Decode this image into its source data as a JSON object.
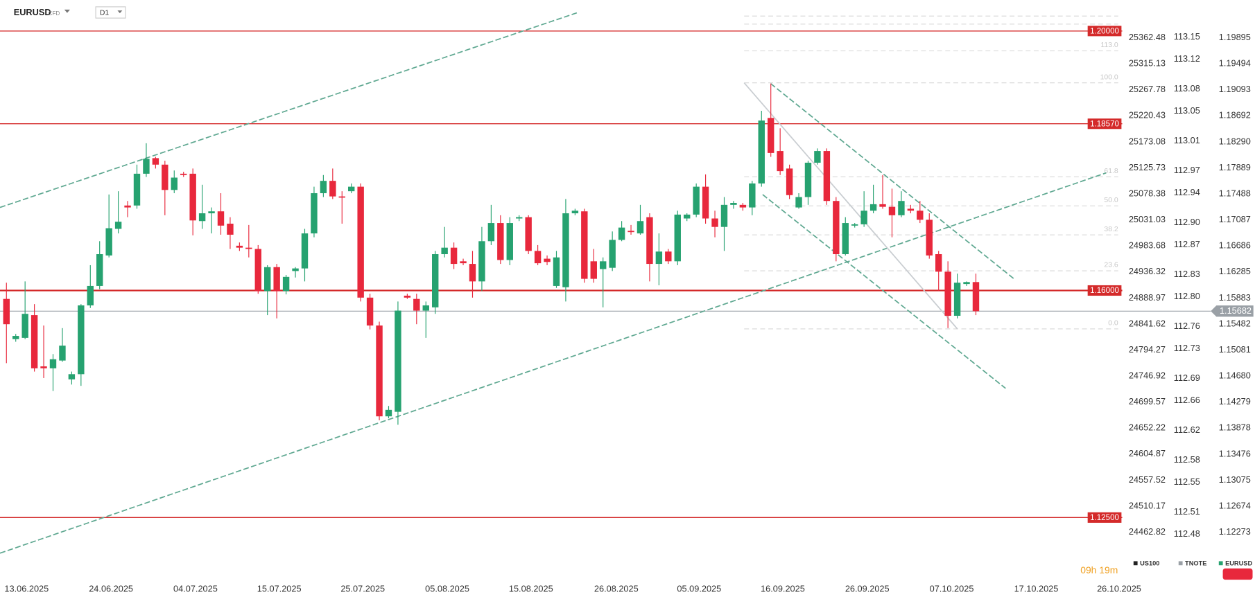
{
  "chart_data": {
    "type": "candlestick",
    "symbol": "EURUSD",
    "badge": "CFD",
    "timeframe": "D1",
    "countdown": "09h 19m",
    "up_color": "#26a270",
    "down_color": "#e8283c",
    "categories": [
      null,
      null,
      null,
      null,
      null,
      null,
      null,
      null,
      null,
      null,
      null,
      null,
      null,
      null,
      null,
      null,
      null,
      null,
      null,
      null,
      null,
      null,
      null,
      null,
      null,
      null,
      null,
      null,
      null,
      null,
      null,
      null,
      null,
      null,
      null,
      null,
      null,
      null,
      null,
      null,
      null,
      null,
      null,
      null,
      null,
      null,
      null,
      null,
      null,
      null,
      null,
      null,
      null,
      null,
      null,
      null,
      null,
      null,
      null,
      null,
      null,
      null,
      null,
      null,
      null,
      null,
      null,
      null,
      null,
      null,
      null,
      null,
      null,
      null,
      null,
      null,
      null,
      null,
      null,
      null,
      null,
      null,
      null,
      null,
      null,
      null,
      null,
      null,
      null,
      null,
      null,
      null,
      null,
      null,
      null,
      null,
      null,
      null,
      null,
      null,
      null,
      null,
      null,
      null,
      null
    ],
    "open": [
      1.1587,
      1.1525,
      1.1527,
      1.1562,
      1.1483,
      1.148,
      1.1492,
      1.1463,
      1.1471,
      1.1577,
      1.1607,
      1.1654,
      1.1695,
      1.1731,
      1.1731,
      1.178,
      1.1804,
      1.1794,
      1.1755,
      1.178,
      1.178,
      1.1707,
      1.1719,
      1.1722,
      1.1703,
      1.1669,
      1.1666,
      1.1664,
      1.1599,
      1.1636,
      1.1599,
      1.163,
      1.1634,
      1.1688,
      1.175,
      1.1769,
      1.1745,
      1.1753,
      1.176,
      1.1589,
      1.1546,
      1.1406,
      1.1413,
      1.1592,
      1.1587,
      1.1569,
      1.1574,
      1.1656,
      1.1666,
      1.1645,
      1.1641,
      1.1614,
      1.1676,
      1.1704,
      1.1647,
      1.1711,
      1.1713,
      1.1661,
      1.1649,
      1.1607,
      1.1605,
      1.1719,
      1.1722,
      1.1645,
      1.1633,
      1.1635,
      1.1678,
      1.1692,
      1.1688,
      1.1713,
      1.1641,
      1.166,
      1.1645,
      1.1711,
      1.1717,
      1.176,
      1.1711,
      1.1698,
      1.1732,
      1.1732,
      1.1728,
      1.1765,
      1.1866,
      1.1815,
      1.1788,
      1.1728,
      1.1744,
      1.1797,
      1.1815,
      1.1738,
      1.1656,
      1.17,
      1.1702,
      1.1723,
      1.1733,
      1.1729,
      1.1716,
      1.1726,
      1.1723,
      1.1709,
      1.1656,
      1.1629,
      1.1561,
      1.161,
      1.1613
    ],
    "high": [
      1.1612,
      1.1533,
      1.1614,
      1.1579,
      1.1546,
      1.1502,
      1.1542,
      1.1475,
      1.1579,
      1.1639,
      1.1676,
      1.1748,
      1.1753,
      1.1738,
      1.1794,
      1.1827,
      1.1806,
      1.18,
      1.1785,
      1.1783,
      1.1788,
      1.1763,
      1.1728,
      1.175,
      1.1713,
      1.1674,
      1.1701,
      1.167,
      1.1639,
      1.1641,
      1.1624,
      1.1636,
      1.1695,
      1.176,
      1.1778,
      1.1788,
      1.1753,
      1.1765,
      1.1765,
      1.1595,
      1.1552,
      1.1422,
      1.1583,
      1.1595,
      1.1595,
      1.1583,
      1.1661,
      1.1698,
      1.1674,
      1.1649,
      1.1661,
      1.1698,
      1.1732,
      1.1716,
      1.1713,
      1.1716,
      1.1716,
      1.167,
      1.1654,
      1.1661,
      1.1741,
      1.1726,
      1.1726,
      1.1664,
      1.1651,
      1.1691,
      1.1707,
      1.1701,
      1.1732,
      1.1719,
      1.1688,
      1.1664,
      1.1723,
      1.1719,
      1.1765,
      1.1779,
      1.1723,
      1.1744,
      1.1738,
      1.1735,
      1.1769,
      1.1877,
      1.1919,
      1.185,
      1.1794,
      1.175,
      1.18,
      1.1819,
      1.1819,
      1.1744,
      1.1713,
      1.1704,
      1.1753,
      1.1763,
      1.1778,
      1.1757,
      1.1753,
      1.1732,
      1.1738,
      1.1719,
      1.1661,
      1.1645,
      1.1626,
      1.1614,
      1.1626
    ],
    "low": [
      1.1488,
      1.1521,
      1.1525,
      1.1475,
      1.1465,
      1.1445,
      1.149,
      1.1455,
      1.1453,
      1.1573,
      1.1602,
      1.1651,
      1.1688,
      1.1713,
      1.1726,
      1.1775,
      1.1788,
      1.1716,
      1.175,
      1.1775,
      1.1685,
      1.1695,
      1.1688,
      1.1686,
      1.1664,
      1.1661,
      1.1651,
      1.1595,
      1.1562,
      1.1557,
      1.1594,
      1.162,
      1.1614,
      1.1682,
      1.1744,
      1.1741,
      1.1703,
      1.175,
      1.1583,
      1.154,
      1.14,
      1.1403,
      1.1393,
      1.1587,
      1.1548,
      1.1527,
      1.1564,
      1.1651,
      1.1633,
      1.1639,
      1.1589,
      1.1599,
      1.167,
      1.1641,
      1.1639,
      1.1707,
      1.1656,
      1.1639,
      1.1639,
      1.1604,
      1.1583,
      1.1716,
      1.1612,
      1.1612,
      1.1574,
      1.163,
      1.1676,
      1.1686,
      1.1686,
      1.1614,
      1.1608,
      1.1641,
      1.1639,
      1.1707,
      1.1713,
      1.1703,
      1.1682,
      1.1661,
      1.1726,
      1.1723,
      1.1716,
      1.176,
      1.1806,
      1.1778,
      1.1741,
      1.1726,
      1.1732,
      1.1794,
      1.1732,
      1.1645,
      1.1654,
      1.1697,
      1.1698,
      1.1719,
      1.1726,
      1.1682,
      1.1713,
      1.1719,
      1.1704,
      1.1649,
      1.1599,
      1.1542,
      1.1557,
      1.1607,
      1.1562
    ],
    "close": [
      1.1548,
      1.153,
      1.1564,
      1.148,
      1.148,
      1.1494,
      1.1515,
      1.1471,
      1.1577,
      1.1607,
      1.1656,
      1.1696,
      1.1706,
      1.1728,
      1.178,
      1.1803,
      1.1794,
      1.1755,
      1.1774,
      1.1778,
      1.1708,
      1.1719,
      1.1722,
      1.17,
      1.1686,
      1.1666,
      1.1664,
      1.1599,
      1.1636,
      1.1599,
      1.1621,
      1.1634,
      1.1688,
      1.175,
      1.1769,
      1.1745,
      1.1744,
      1.176,
      1.1589,
      1.1546,
      1.1406,
      1.1416,
      1.1569,
      1.1589,
      1.1569,
      1.1577,
      1.1656,
      1.1666,
      1.1641,
      1.1642,
      1.1614,
      1.1676,
      1.1704,
      1.1647,
      1.1704,
      1.1713,
      1.1661,
      1.1642,
      1.1644,
      1.1651,
      1.1719,
      1.1723,
      1.1618,
      1.1618,
      1.1645,
      1.1678,
      1.1697,
      1.169,
      1.1707,
      1.1641,
      1.166,
      1.1645,
      1.1717,
      1.1717,
      1.176,
      1.1711,
      1.1698,
      1.1732,
      1.1735,
      1.1728,
      1.1765,
      1.1862,
      1.1812,
      1.1784,
      1.1747,
      1.1744,
      1.1797,
      1.1815,
      1.1738,
      1.1656,
      1.1704,
      1.1702,
      1.1723,
      1.1733,
      1.1729,
      1.1716,
      1.1738,
      1.1723,
      1.1709,
      1.1654,
      1.1629,
      1.1561,
      1.1612,
      1.1613,
      1.1568
    ],
    "xlim": [
      -0.69,
      119.7
    ],
    "xticks": [
      {
        "value": 2.16,
        "label": "13.06.2025"
      },
      {
        "value": 11.22,
        "label": "24.06.2025"
      },
      {
        "value": 20.28,
        "label": "04.07.2025"
      },
      {
        "value": 29.26,
        "label": "15.07.2025"
      },
      {
        "value": 38.23,
        "label": "25.07.2025"
      },
      {
        "value": 47.29,
        "label": "05.08.2025"
      },
      {
        "value": 56.27,
        "label": "15.08.2025"
      },
      {
        "value": 65.42,
        "label": "26.08.2025"
      },
      {
        "value": 74.31,
        "label": "05.09.2025"
      },
      {
        "value": 83.28,
        "label": "16.09.2025"
      },
      {
        "value": 92.34,
        "label": "26.09.2025"
      },
      {
        "value": 101.4,
        "label": "07.10.2025"
      },
      {
        "value": 110.47,
        "label": "17.10.2025"
      },
      {
        "value": 119.36,
        "label": "26.10.2025"
      }
    ],
    "ylim": [
      1.11554,
      1.20478
    ],
    "yticks": [
      1.19895,
      1.19494,
      1.19093,
      1.18692,
      {
        "value": 1.1829,
        "label": "1.18290"
      },
      1.17889,
      1.17488,
      1.17087,
      1.16686,
      1.16285,
      1.15883,
      1.15482,
      1.15081,
      {
        "value": 1.1468,
        "label": "1.14680"
      },
      1.14279,
      1.13878,
      1.13476,
      1.13075,
      1.12674,
      1.12273
    ],
    "y2lim": [
      112.42,
      113.2
    ],
    "y2ticks": [
      113.15,
      113.12,
      113.08,
      113.05,
      113.01,
      112.97,
      112.94,
      {
        "value": 112.9,
        "label": "112.90"
      },
      112.87,
      112.83,
      {
        "value": 112.8,
        "label": "112.80"
      },
      112.76,
      112.73,
      112.69,
      112.66,
      112.62,
      112.58,
      112.55,
      112.51,
      112.48
    ],
    "y3lim": [
      24377.95,
      25431.24
    ],
    "y3ticks": [
      25362.48,
      25315.13,
      25267.78,
      25220.43,
      25173.08,
      25125.73,
      25078.38,
      25031.03,
      24983.68,
      24936.32,
      24888.97,
      24841.62,
      24794.27,
      24746.92,
      24699.57,
      24652.22,
      24604.87,
      24557.52,
      24510.17,
      24462.82
    ],
    "levels": [
      {
        "value": 1.2,
        "label": "1.20000"
      },
      {
        "value": 1.1857,
        "label": "1.18570"
      },
      {
        "value": 1.16,
        "label": "1.16000"
      },
      {
        "value": 1.125,
        "label": "1.12500"
      }
    ],
    "level_color": "#d42a2a",
    "last_price": {
      "value": 1.15682,
      "label": "1.15682"
    },
    "last_price_color": "#9aa0a6",
    "fib": {
      "anchors": [
        1.15408,
        1.19201
      ],
      "levels": [
        {
          "value": 113,
          "label": "113.0"
        },
        {
          "value": 100,
          "label": "100.0"
        },
        61.8,
        {
          "value": 50,
          "label": "50.0"
        },
        38.2,
        23.6,
        {
          "value": 0,
          "label": "0.0"
        }
      ]
    },
    "legend": [
      {
        "name": "US100",
        "color": "#222222"
      },
      {
        "name": "TNOTE",
        "color": "#9aa0a6"
      },
      {
        "name": "EURUSD",
        "color": "#26a270"
      }
    ]
  }
}
